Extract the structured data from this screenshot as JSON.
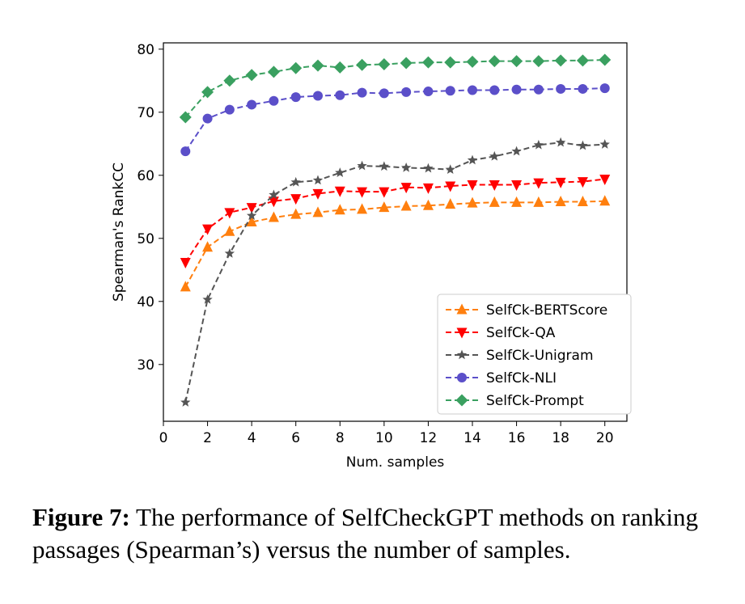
{
  "chart_data": {
    "type": "line",
    "title": "",
    "xlabel": "Num. samples",
    "ylabel": "Spearman's RankCC",
    "xlim": [
      0,
      21
    ],
    "ylim": [
      21,
      81
    ],
    "x_ticks": [
      0,
      2,
      4,
      6,
      8,
      10,
      12,
      14,
      16,
      18,
      20
    ],
    "y_ticks": [
      30,
      40,
      50,
      60,
      70,
      80
    ],
    "grid": false,
    "legend_position": "lower-right",
    "x": [
      1,
      2,
      3,
      4,
      5,
      6,
      7,
      8,
      9,
      10,
      11,
      12,
      13,
      14,
      15,
      16,
      17,
      18,
      19,
      20
    ],
    "series": [
      {
        "name": "SelfCk-BERTScore",
        "color": "#ff7f0e",
        "marker": "triangle-up",
        "values": [
          42.3,
          48.6,
          51.1,
          52.6,
          53.3,
          53.8,
          54.1,
          54.5,
          54.6,
          54.9,
          55.1,
          55.2,
          55.4,
          55.6,
          55.7,
          55.7,
          55.7,
          55.8,
          55.8,
          55.9
        ]
      },
      {
        "name": "SelfCk-QA",
        "color": "#ff0000",
        "marker": "triangle-down",
        "values": [
          46.2,
          51.5,
          54.1,
          54.9,
          55.9,
          56.3,
          57.1,
          57.5,
          57.4,
          57.4,
          58.1,
          58.0,
          58.3,
          58.5,
          58.5,
          58.5,
          58.8,
          58.9,
          59.0,
          59.4
        ]
      },
      {
        "name": "SelfCk-Unigram",
        "color": "#555555",
        "marker": "star",
        "values": [
          24.0,
          40.3,
          47.6,
          53.6,
          56.9,
          58.9,
          59.2,
          60.4,
          61.5,
          61.4,
          61.2,
          61.1,
          60.9,
          62.4,
          63.0,
          63.8,
          64.8,
          65.2,
          64.7,
          64.9
        ]
      },
      {
        "name": "SelfCk-NLI",
        "color": "#5b4fc9",
        "marker": "circle",
        "values": [
          63.8,
          69.0,
          70.4,
          71.2,
          71.8,
          72.4,
          72.6,
          72.7,
          73.1,
          73.0,
          73.2,
          73.3,
          73.4,
          73.5,
          73.5,
          73.6,
          73.6,
          73.7,
          73.7,
          73.8
        ]
      },
      {
        "name": "SelfCk-Prompt",
        "color": "#3aa060",
        "marker": "diamond",
        "values": [
          69.2,
          73.2,
          75.0,
          75.9,
          76.4,
          77.0,
          77.4,
          77.1,
          77.5,
          77.6,
          77.8,
          77.9,
          77.9,
          78.0,
          78.1,
          78.1,
          78.1,
          78.2,
          78.2,
          78.3
        ]
      }
    ]
  },
  "caption": {
    "label": "Figure 7:",
    "text": " The performance of SelfCheckGPT methods on ranking passages (Spearman’s) versus the number of samples."
  }
}
